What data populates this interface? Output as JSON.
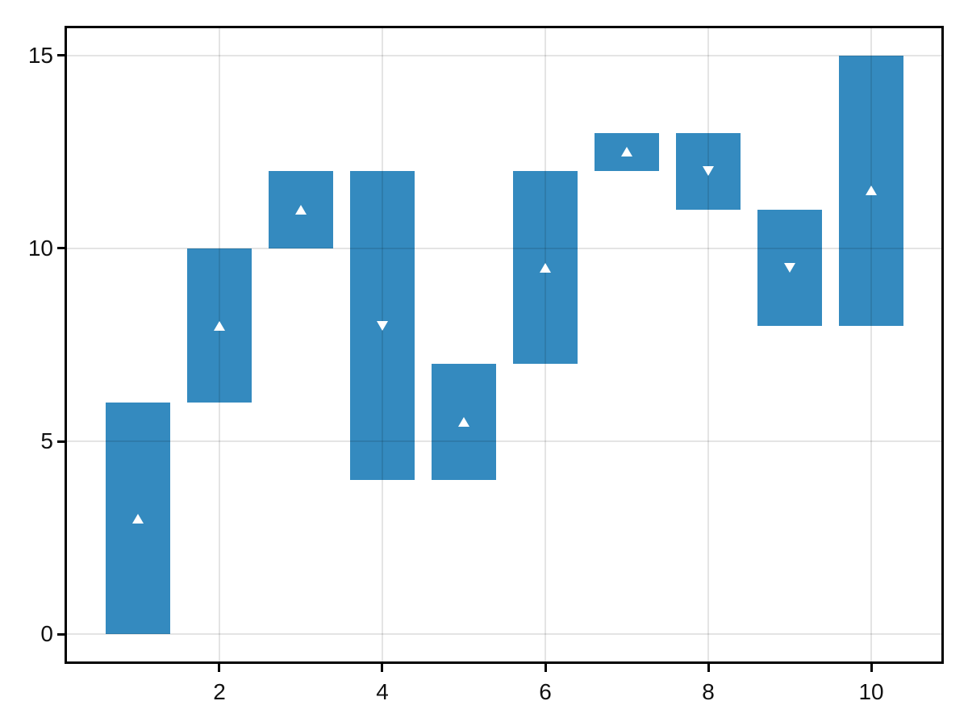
{
  "figure": {
    "background": "#ffffff"
  },
  "chart_data": {
    "type": "bar",
    "variant": "floating-range-bars-with-direction-markers",
    "title": "",
    "xlabel": "",
    "ylabel": "",
    "grid": true,
    "legend": false,
    "xlim": [
      0.119,
      10.871
    ],
    "ylim": [
      -0.731,
      15.731
    ],
    "bar_width": 0.8,
    "xticks": {
      "values": [
        2,
        4,
        6,
        8,
        10
      ],
      "labels": [
        "2",
        "4",
        "6",
        "8",
        "10"
      ]
    },
    "yticks": {
      "values": [
        0,
        5,
        10,
        15
      ],
      "labels": [
        "0",
        "5",
        "10",
        "15"
      ]
    },
    "bars": [
      {
        "x": 1,
        "low": 0,
        "high": 6,
        "direction": "up",
        "marker_y": 3
      },
      {
        "x": 2,
        "low": 6,
        "high": 10,
        "direction": "up",
        "marker_y": 8
      },
      {
        "x": 3,
        "low": 10,
        "high": 12,
        "direction": "up",
        "marker_y": 11
      },
      {
        "x": 4,
        "low": 4,
        "high": 12,
        "direction": "down",
        "marker_y": 8
      },
      {
        "x": 5,
        "low": 4,
        "high": 7,
        "direction": "up",
        "marker_y": 5.5
      },
      {
        "x": 6,
        "low": 7,
        "high": 12,
        "direction": "up",
        "marker_y": 9.5
      },
      {
        "x": 7,
        "low": 12,
        "high": 13,
        "direction": "up",
        "marker_y": 12.5
      },
      {
        "x": 8,
        "low": 11,
        "high": 13,
        "direction": "down",
        "marker_y": 12
      },
      {
        "x": 9,
        "low": 8,
        "high": 11,
        "direction": "down",
        "marker_y": 9.5
      },
      {
        "x": 10,
        "low": 8,
        "high": 15,
        "direction": "up",
        "marker_y": 11.5
      }
    ],
    "colors": {
      "bar": "#348abf",
      "marker": "#ffffff",
      "grid_overlay": "rgba(0,0,0,0.105)",
      "spine": "#000000",
      "tick_label": "#111111",
      "background": "#ffffff"
    }
  }
}
